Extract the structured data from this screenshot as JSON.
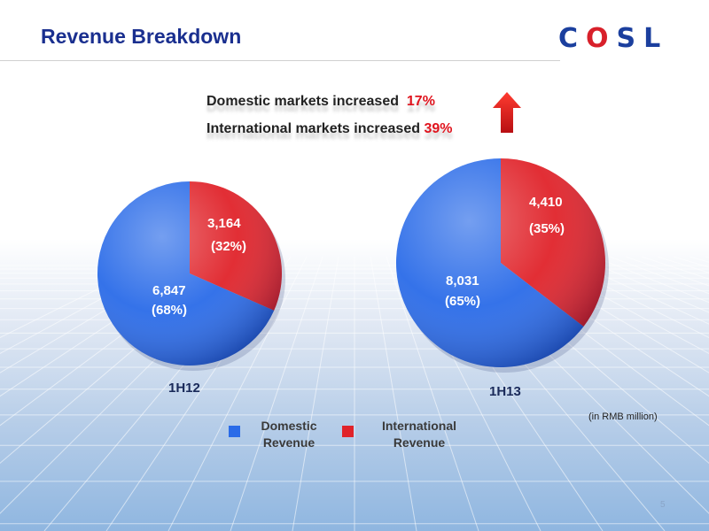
{
  "slide": {
    "title": "Revenue Breakdown",
    "page_number": "5"
  },
  "logo": {
    "letters": [
      "C",
      "O",
      "S",
      "L"
    ],
    "brand_blue": "#1b3f9e",
    "brand_red": "#d8202a"
  },
  "highlights": [
    {
      "text": "Domestic markets increased",
      "value": "17%"
    },
    {
      "text": "International markets increased",
      "value": "39%"
    }
  ],
  "icons": {
    "growth_indicator": "up-arrow-icon",
    "pie_texture": "world-map-on-globe"
  },
  "note": "(in RMB million)",
  "chart_data": [
    {
      "type": "pie",
      "title": "1H12",
      "slices": [
        {
          "name": "Domestic Revenue",
          "value": 6847,
          "value_label": "6,847",
          "pct_label": "(68%)",
          "color": "#2a6be8"
        },
        {
          "name": "International Revenue",
          "value": 3164,
          "value_label": "3,164",
          "pct_label": "(32%)",
          "color": "#e0232a"
        }
      ]
    },
    {
      "type": "pie",
      "title": "1H13",
      "slices": [
        {
          "name": "Domestic Revenue",
          "value": 8031,
          "value_label": "8,031",
          "pct_label": "(65%)",
          "color": "#2a6be8"
        },
        {
          "name": "International Revenue",
          "value": 4410,
          "value_label": "4,410",
          "pct_label": "(35%)",
          "color": "#e0232a"
        }
      ]
    }
  ],
  "legend": [
    {
      "line1": "Domestic",
      "line2": "Revenue",
      "color": "#2a6be8"
    },
    {
      "line1": "International",
      "line2": "Revenue",
      "color": "#e0232a"
    }
  ]
}
